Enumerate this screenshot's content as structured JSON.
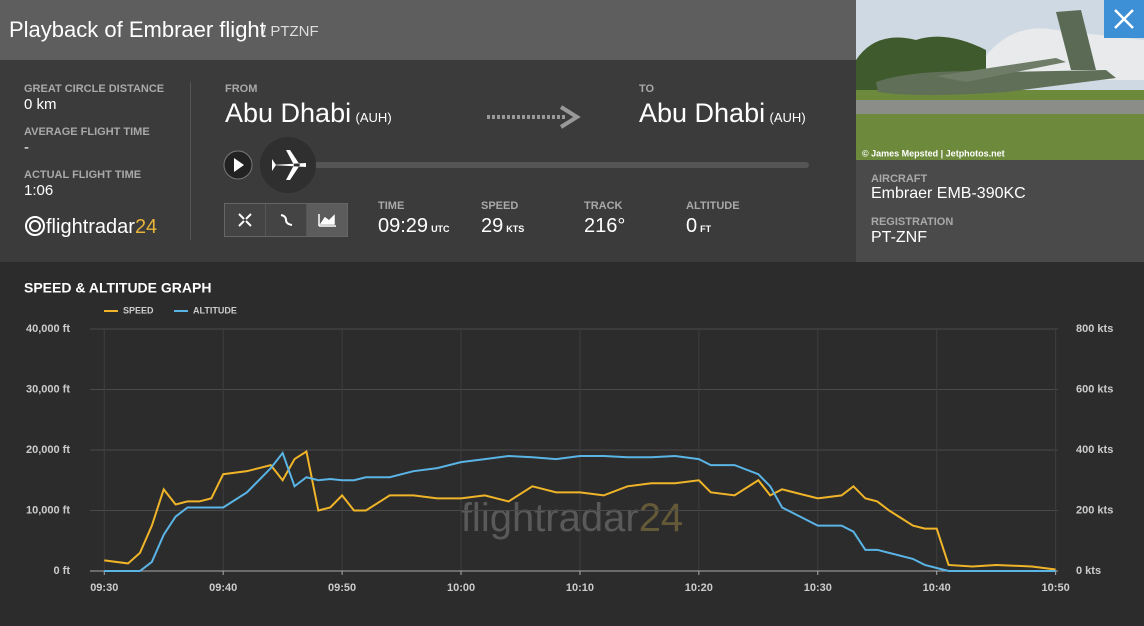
{
  "header": {
    "title": "Playback of Embraer flight",
    "subtitle": "/ PTZNF"
  },
  "stats": [
    {
      "label": "GREAT CIRCLE DISTANCE",
      "value": "0 km"
    },
    {
      "label": "AVERAGE FLIGHT TIME",
      "value": "-"
    },
    {
      "label": "ACTUAL FLIGHT TIME",
      "value": "1:06"
    }
  ],
  "brand": {
    "text": "flightradar",
    "suffix": "24"
  },
  "route": {
    "from": {
      "label": "FROM",
      "city": "Abu Dhabi",
      "code": "(AUH)"
    },
    "to": {
      "label": "TO",
      "city": "Abu Dhabi",
      "code": "(AUH)"
    }
  },
  "live": [
    {
      "label": "TIME",
      "value": "09:29",
      "unit": "UTC"
    },
    {
      "label": "SPEED",
      "value": "29",
      "unit": "KTS"
    },
    {
      "label": "TRACK",
      "value": "216°"
    },
    {
      "label": "ALTITUDE",
      "value": "0",
      "unit": "FT"
    }
  ],
  "photo_credit": "© James Mepsted | Jetphotos.net",
  "aircraft": {
    "label": "AIRCRAFT",
    "value": "Embraer EMB-390KC",
    "registration_label": "REGISTRATION",
    "registration": "PT-ZNF"
  },
  "chart_data": {
    "type": "line",
    "title": "SPEED & ALTITUDE GRAPH",
    "legend": "upper left",
    "grid": true,
    "x": [
      570,
      572,
      573,
      574,
      575,
      576,
      577,
      578,
      579,
      580,
      582,
      584,
      585,
      586,
      587,
      588,
      589,
      590,
      591,
      592,
      594,
      596,
      598,
      600,
      602,
      604,
      606,
      608,
      610,
      612,
      614,
      616,
      618,
      620,
      621,
      623,
      625,
      626,
      627,
      628,
      630,
      632,
      633,
      634,
      635,
      636,
      638,
      639,
      640,
      641,
      643,
      645,
      648,
      650
    ],
    "xlim": [
      568.8,
      650.2
    ],
    "xticks": [
      {
        "value": 570,
        "label": "09:30"
      },
      {
        "value": 580,
        "label": "09:40"
      },
      {
        "value": 590,
        "label": "09:50"
      },
      {
        "value": 600,
        "label": "10:00"
      },
      {
        "value": 610,
        "label": "10:10"
      },
      {
        "value": 620,
        "label": "10:20"
      },
      {
        "value": 630,
        "label": "10:30"
      },
      {
        "value": 640,
        "label": "10:40"
      },
      {
        "value": 650,
        "label": "10:50"
      }
    ],
    "ylim": [
      0,
      40000
    ],
    "yticks": [
      {
        "value": 0,
        "label": "0 ft"
      },
      {
        "value": 10000,
        "label": "10,000 ft"
      },
      {
        "value": 20000,
        "label": "20,000 ft"
      },
      {
        "value": 30000,
        "label": "30,000 ft"
      },
      {
        "value": 40000,
        "label": "40,000 ft"
      }
    ],
    "y2lim": [
      0,
      800
    ],
    "y2ticks": [
      {
        "value": 0,
        "label": "0 kts"
      },
      {
        "value": 200,
        "label": "200 kts"
      },
      {
        "value": 400,
        "label": "400 kts"
      },
      {
        "value": 600,
        "label": "600 kts"
      },
      {
        "value": 800,
        "label": "800 kts"
      }
    ],
    "series": [
      {
        "name": "SPEED",
        "color": "#f0b429",
        "axis": "y2",
        "values": [
          35,
          25,
          60,
          150,
          270,
          220,
          230,
          230,
          240,
          320,
          330,
          350,
          300,
          370,
          395,
          200,
          210,
          250,
          200,
          200,
          250,
          250,
          240,
          240,
          250,
          230,
          280,
          260,
          260,
          250,
          280,
          290,
          290,
          300,
          260,
          250,
          300,
          250,
          270,
          260,
          240,
          250,
          280,
          240,
          230,
          200,
          150,
          140,
          140,
          20,
          15,
          20,
          15,
          5
        ]
      },
      {
        "name": "ALTITUDE",
        "color": "#5ab4e5",
        "values": [
          0,
          0,
          0,
          1500,
          6000,
          9000,
          10500,
          10500,
          10500,
          10500,
          13000,
          17000,
          19500,
          14000,
          15500,
          15000,
          15200,
          15000,
          15000,
          15500,
          15500,
          16500,
          17000,
          18000,
          18500,
          19000,
          18800,
          18500,
          19000,
          19000,
          18800,
          18800,
          19000,
          18500,
          17500,
          17500,
          16000,
          14000,
          10500,
          9500,
          7500,
          7500,
          6500,
          3500,
          3500,
          3000,
          2000,
          1000,
          500,
          0,
          0,
          0,
          0,
          0
        ]
      }
    ]
  }
}
